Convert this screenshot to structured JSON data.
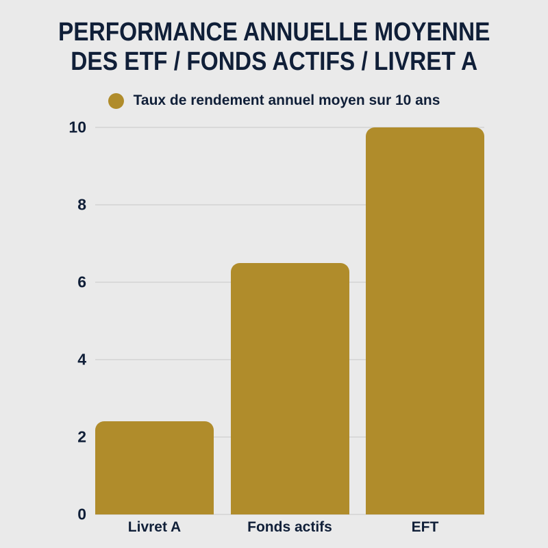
{
  "page": {
    "background_color": "#EAEAEA",
    "text_color": "#101F38"
  },
  "chart_data": {
    "type": "bar",
    "title": "PERFORMANCE ANNUELLE MOYENNE DES ETF / FONDS ACTIFS / LIVRET A",
    "title_lines": [
      "PERFORMANCE ANNUELLE MOYENNE",
      "DES ETF / FONDS ACTIFS / LIVRET A"
    ],
    "legend": {
      "label": "Taux de rendement annuel moyen sur 10 ans",
      "marker_color": "#B08C2B",
      "position": "top-center"
    },
    "categories": [
      "Livret A",
      "Fonds actifs",
      "EFT"
    ],
    "series": [
      {
        "name": "Taux de rendement annuel moyen sur 10 ans",
        "values": [
          2.4,
          6.5,
          10
        ]
      }
    ],
    "xlabel": "",
    "ylabel": "",
    "ylim": [
      0,
      10
    ],
    "yticks": [
      0,
      2,
      4,
      6,
      8,
      10
    ],
    "grid": true,
    "bar_color": "#B08C2B",
    "gridline_color": "#D9D9D9",
    "text_color": "#101F38"
  }
}
